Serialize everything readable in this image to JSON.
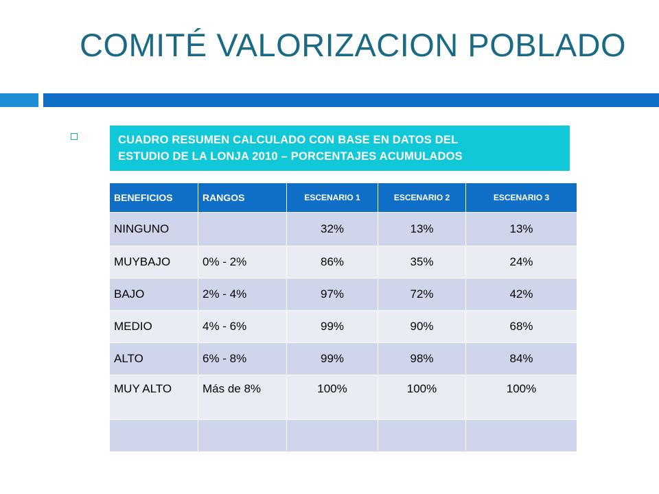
{
  "title": "COMITÉ VALORIZACION POBLADO",
  "summary": {
    "line1": "CUADRO RESUMEN CALCULADO CON BASE EN DATOS DEL",
    "line2": "ESTUDIO DE LA LONJA 2010 – PORCENTAJES ACUMULADOS"
  },
  "table": {
    "headers": [
      "BENEFICIOS",
      "RANGOS",
      "ESCENARIO 1",
      "ESCENARIO 2",
      "ESCENARIO 3"
    ],
    "rows": [
      [
        "NINGUNO",
        "",
        "32%",
        "13%",
        "13%"
      ],
      [
        "MUYBAJO",
        "0% - 2%",
        "86%",
        "35%",
        "24%"
      ],
      [
        "BAJO",
        "2% - 4%",
        "97%",
        "72%",
        "42%"
      ],
      [
        "MEDIO",
        "4% - 6%",
        "99%",
        "90%",
        "68%"
      ],
      [
        "ALTO",
        "6% - 8%",
        "99%",
        "98%",
        "84%"
      ],
      [
        "MUY ALTO",
        "Más de 8%",
        "100%",
        "100%",
        "100%"
      ],
      [
        "",
        "",
        "",
        "",
        ""
      ]
    ]
  },
  "colors": {
    "title": "#1a6a86",
    "bar_light": "#1e8fd6",
    "bar_dark": "#0f6fc6",
    "summary_box": "#10c8d8",
    "header_bg": "#0f6fc6",
    "row_dark": "#cfd5ea",
    "row_light": "#e9ebf5"
  }
}
